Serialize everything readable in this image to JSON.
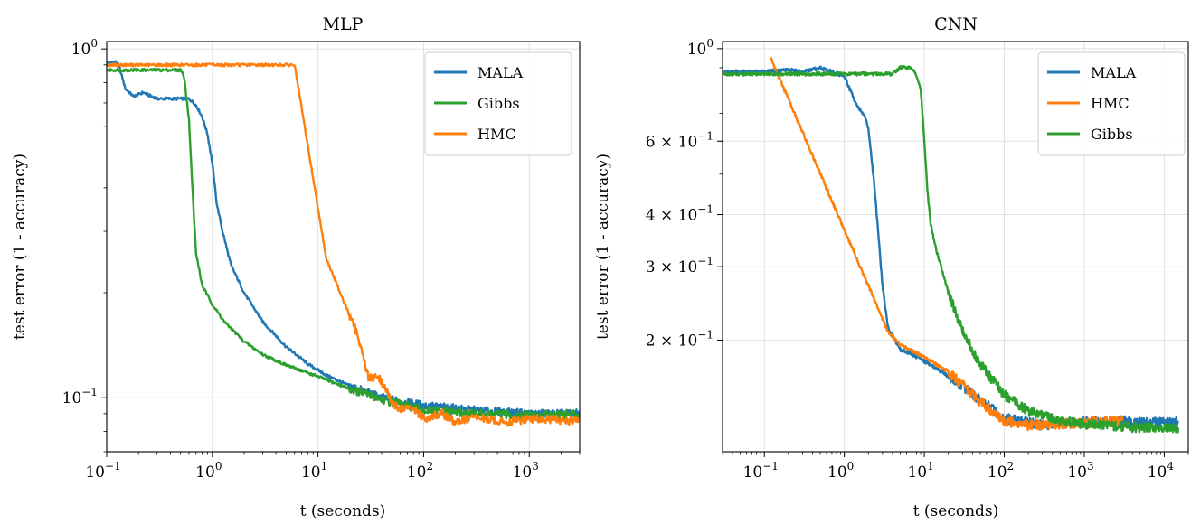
{
  "chart_data": [
    {
      "type": "line",
      "title": "MLP",
      "xlabel": "t (seconds)",
      "ylabel": "test error (1 - accuracy)",
      "xscale": "log",
      "yscale": "log",
      "xlim": [
        0.1,
        3000
      ],
      "ylim": [
        0.07,
        1.05
      ],
      "grid": true,
      "legend_position": "top-right",
      "x_ticks": [
        {
          "base": "10",
          "exp": "−1"
        },
        {
          "base": "10",
          "exp": "0"
        },
        {
          "base": "10",
          "exp": "1"
        },
        {
          "base": "10",
          "exp": "2"
        },
        {
          "base": "10",
          "exp": "3"
        }
      ],
      "y_ticks": [
        {
          "base": "10",
          "exp": "0"
        },
        {
          "base": "10",
          "exp": "−1"
        }
      ],
      "series": [
        {
          "name": "MALA",
          "color": "#1f77b4",
          "x": [
            0.1,
            0.12,
            0.13,
            0.15,
            0.18,
            0.22,
            0.3,
            0.4,
            0.5,
            0.6,
            0.7,
            0.8,
            0.9,
            1.0,
            1.1,
            1.25,
            1.5,
            2,
            3,
            5,
            8,
            12,
            20,
            40,
            100,
            300,
            1000,
            3000
          ],
          "y": [
            0.91,
            0.92,
            0.9,
            0.77,
            0.73,
            0.75,
            0.72,
            0.72,
            0.72,
            0.72,
            0.69,
            0.64,
            0.57,
            0.47,
            0.36,
            0.3,
            0.24,
            0.2,
            0.165,
            0.14,
            0.125,
            0.116,
            0.108,
            0.1,
            0.095,
            0.092,
            0.09,
            0.09
          ]
        },
        {
          "name": "Gibbs",
          "color": "#2ca02c",
          "x": [
            0.1,
            0.5,
            0.52,
            0.55,
            0.6,
            0.65,
            0.7,
            0.8,
            1.0,
            1.3,
            2,
            3,
            5,
            10,
            20,
            50,
            100,
            300,
            1000,
            3000
          ],
          "y": [
            0.87,
            0.87,
            0.86,
            0.8,
            0.63,
            0.39,
            0.26,
            0.21,
            0.185,
            0.165,
            0.145,
            0.133,
            0.124,
            0.115,
            0.106,
            0.097,
            0.092,
            0.09,
            0.089,
            0.09
          ]
        },
        {
          "name": "HMC",
          "color": "#ff7f0e",
          "x": [
            0.1,
            6,
            12,
            24,
            30,
            38,
            45,
            50,
            60,
            80,
            100,
            150,
            200,
            300,
            600,
            1000,
            3000
          ],
          "y": [
            0.9,
            0.9,
            0.25,
            0.15,
            0.114,
            0.114,
            0.104,
            0.096,
            0.093,
            0.093,
            0.087,
            0.09,
            0.085,
            0.088,
            0.085,
            0.087,
            0.086
          ]
        }
      ]
    },
    {
      "type": "line",
      "title": "CNN",
      "xlabel": "t (seconds)",
      "ylabel": "test error (1 - accuracy)",
      "xscale": "log",
      "yscale": "log",
      "xlim": [
        0.03,
        20000
      ],
      "ylim": [
        0.108,
        1.04
      ],
      "grid": true,
      "legend_position": "top-right",
      "x_ticks": [
        {
          "base": "10",
          "exp": "−1"
        },
        {
          "base": "10",
          "exp": "0"
        },
        {
          "base": "10",
          "exp": "1"
        },
        {
          "base": "10",
          "exp": "2"
        },
        {
          "base": "10",
          "exp": "3"
        },
        {
          "base": "10",
          "exp": "4"
        }
      ],
      "y_ticks": [
        {
          "base": "10",
          "exp": "0"
        },
        {
          "base": "6 × 10",
          "exp": "−1"
        },
        {
          "base": "4 × 10",
          "exp": "−1"
        },
        {
          "base": "3 × 10",
          "exp": "−1"
        },
        {
          "base": "2 × 10",
          "exp": "−1"
        }
      ],
      "series": [
        {
          "name": "MALA",
          "color": "#1f77b4",
          "x": [
            0.03,
            0.1,
            0.2,
            0.3,
            0.5,
            0.7,
            1.0,
            1.2,
            1.4,
            1.6,
            1.8,
            2.0,
            2.3,
            2.6,
            3.0,
            3.5,
            5,
            7,
            10,
            15,
            30,
            60,
            100,
            300,
            1000,
            3000,
            10000,
            15000
          ],
          "y": [
            0.88,
            0.88,
            0.89,
            0.88,
            0.9,
            0.88,
            0.86,
            0.79,
            0.74,
            0.71,
            0.69,
            0.64,
            0.5,
            0.38,
            0.27,
            0.215,
            0.19,
            0.185,
            0.178,
            0.17,
            0.155,
            0.14,
            0.13,
            0.125,
            0.127,
            0.128,
            0.127,
            0.128
          ]
        },
        {
          "name": "HMC",
          "color": "#ff7f0e",
          "x": [
            0.12,
            3.5,
            5,
            10,
            20,
            40,
            60,
            100,
            200,
            500,
            1000,
            3000
          ],
          "y": [
            0.95,
            0.21,
            0.195,
            0.182,
            0.168,
            0.148,
            0.138,
            0.128,
            0.125,
            0.126,
            0.127,
            0.128
          ]
        },
        {
          "name": "Gibbs",
          "color": "#2ca02c",
          "x": [
            0.03,
            4,
            5,
            6,
            7,
            8,
            9,
            10,
            11,
            12,
            14,
            17,
            20,
            30,
            50,
            100,
            200,
            500,
            1000,
            3000,
            10000,
            15000
          ],
          "y": [
            0.87,
            0.87,
            0.9,
            0.9,
            0.9,
            0.86,
            0.8,
            0.6,
            0.45,
            0.38,
            0.33,
            0.29,
            0.26,
            0.21,
            0.175,
            0.148,
            0.135,
            0.128,
            0.126,
            0.124,
            0.123,
            0.123
          ]
        }
      ]
    }
  ]
}
